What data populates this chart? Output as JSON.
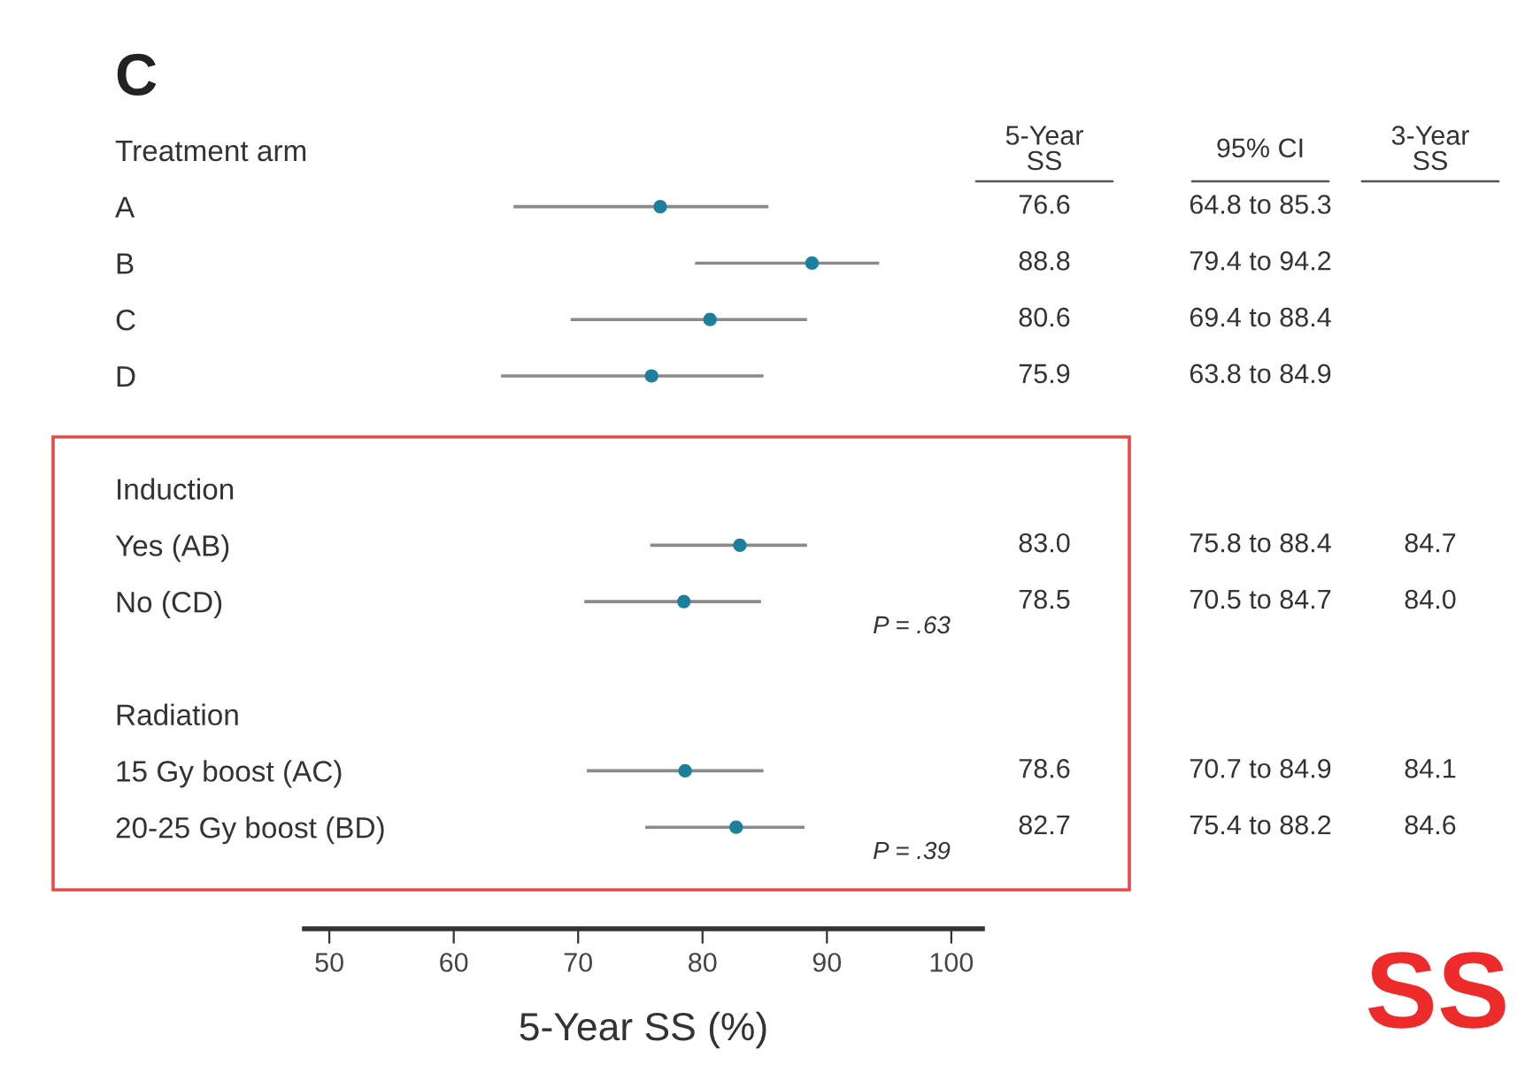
{
  "chart_data": {
    "type": "scatter",
    "title": "C",
    "xlabel": "5-Year SS (%)",
    "categories": [
      "Treatment arm",
      "A",
      "B",
      "C",
      "D",
      null,
      "Induction",
      "Yes (AB)",
      "No (CD)",
      null,
      "Radiation",
      "15 Gy boost (AC)",
      "20-25 Gy boost (BD)"
    ],
    "series": [
      {
        "color": "#1c7f9c",
        "values": [
          null,
          76.6,
          88.8,
          80.6,
          75.9,
          null,
          null,
          83.0,
          78.5,
          null,
          null,
          78.6,
          82.7
        ],
        "errors": [
          null,
          [
            64.8,
            85.3
          ],
          [
            79.4,
            94.2
          ],
          [
            69.4,
            88.4
          ],
          [
            63.8,
            84.9
          ],
          null,
          null,
          [
            75.8,
            88.4
          ],
          [
            70.5,
            84.7
          ],
          null,
          null,
          [
            70.7,
            84.9
          ],
          [
            75.4,
            88.2
          ]
        ],
        "value_labels": [
          null,
          "76.6",
          "88.8",
          "80.6",
          "75.9",
          null,
          null,
          "83.0",
          "78.5",
          null,
          null,
          "78.6",
          "82.7"
        ]
      }
    ],
    "annotations": [
      "5-Year\nSS",
      "95% CI",
      "3-Year\nSS",
      "64.8 to 85.3",
      "79.4 to 94.2",
      "69.4 to 88.4",
      "63.8 to 84.9",
      "75.8 to 88.4",
      "70.5 to 84.7",
      "70.7 to 84.9",
      "75.4 to 88.2",
      "84.7",
      "84.0",
      "84.1",
      "84.6",
      "P = .63",
      "P = .39",
      "SS"
    ],
    "xlim": [
      48,
      102.5
    ],
    "xticks": [
      50,
      60,
      70,
      80,
      90,
      100
    ],
    "orientation": "horizontal",
    "marker": "circle",
    "grid": false
  }
}
